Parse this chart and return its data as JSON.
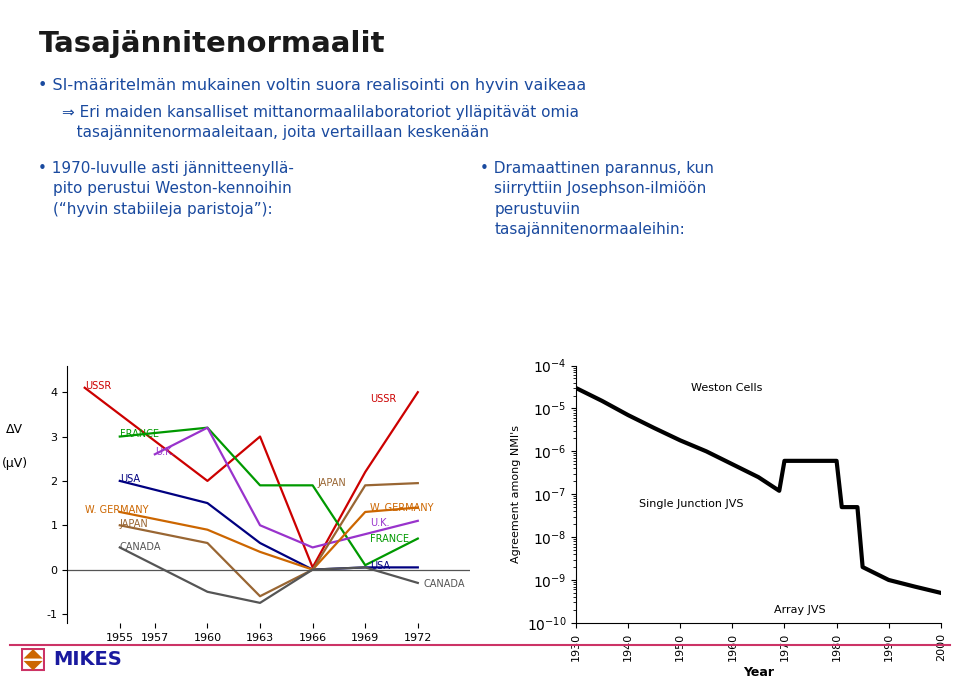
{
  "title": "Tasajännitenormaalit",
  "bullet1": "SI-määritelmän mukainen voltin suora realisointi on hyvin vaikeaa",
  "bullet1_sub": "⇒ Eri maiden kansalliset mittanormaalilaboratoriot ylläpitävät omia",
  "bullet1_sub2": "   tasajännitenormaaleitaan, joita vertaillaan keskenään",
  "bullet2_left_line1": "1970-luvulle asti jännitteenyllä-",
  "bullet2_left_line2": "pito perustui Weston-kennoihin",
  "bullet2_left_line3": "(“hyvin stabiileja paristoja”):",
  "bullet2_right_line1": "Dramaattinen parannus, kun",
  "bullet2_right_line2": "siirryttiin Josephson-ilmiöön",
  "bullet2_right_line3": "perustuviin",
  "bullet2_right_line4": "tasajännitenormaaleihin:",
  "background": "#ffffff",
  "title_color": "#1a1a1a",
  "bullet_color": "#1a4a9f",
  "footer_line_color": "#cc3366",
  "left_chart": {
    "years": [
      1953,
      1955,
      1957,
      1960,
      1963,
      1966,
      1969,
      1972
    ],
    "series": {
      "USSR": {
        "color": "#cc0000",
        "values": [
          4.1,
          null,
          null,
          2.0,
          3.0,
          0.05,
          2.2,
          4.0
        ]
      },
      "FRANCE": {
        "color": "#009900",
        "values": [
          null,
          3.0,
          null,
          3.2,
          1.9,
          1.9,
          0.1,
          0.7
        ]
      },
      "UK": {
        "color": "#9933cc",
        "values": [
          null,
          null,
          2.6,
          3.2,
          1.0,
          0.5,
          0.8,
          1.1
        ]
      },
      "USA": {
        "color": "#000080",
        "values": [
          null,
          2.0,
          null,
          1.5,
          0.6,
          0.0,
          0.05,
          0.05
        ]
      },
      "W_GERMANY": {
        "color": "#cc6600",
        "values": [
          null,
          1.3,
          null,
          0.9,
          0.4,
          0.0,
          1.3,
          1.4
        ]
      },
      "JAPAN": {
        "color": "#996633",
        "values": [
          null,
          1.0,
          null,
          0.6,
          -0.6,
          0.0,
          1.9,
          1.95
        ]
      },
      "CANADA": {
        "color": "#555555",
        "values": [
          null,
          0.5,
          null,
          -0.5,
          -0.75,
          0.0,
          0.05,
          -0.3
        ]
      }
    },
    "label_start": {
      "USSR": [
        1953,
        4.15,
        "USSR",
        "#cc0000",
        "left"
      ],
      "FRANCE": [
        1955,
        3.05,
        "FRANCE",
        "#009900",
        "left"
      ],
      "UK": [
        1957,
        2.65,
        "U.K.",
        "#9933cc",
        "left"
      ],
      "USA": [
        1955,
        2.05,
        "USA",
        "#000080",
        "left"
      ],
      "W_GERMANY": [
        1953,
        1.35,
        "W. GERMANY",
        "#cc6600",
        "left"
      ],
      "JAPAN": [
        1955,
        1.02,
        "JAPAN",
        "#996633",
        "left"
      ],
      "CANADA": [
        1955,
        0.52,
        "CANADA",
        "#555555",
        "left"
      ]
    },
    "label_end": {
      "USSR": [
        1969.3,
        3.85,
        "USSR",
        "#cc0000",
        "left"
      ],
      "JAPAN": [
        1966.3,
        1.95,
        "JAPAN",
        "#996633",
        "left"
      ],
      "W_GERMANY": [
        1969.3,
        1.38,
        "W. GERMANY",
        "#cc6600",
        "left"
      ],
      "UK": [
        1969.3,
        1.05,
        "U.K.",
        "#9933cc",
        "left"
      ],
      "FRANCE": [
        1969.3,
        0.68,
        "FRANCE",
        "#009900",
        "left"
      ],
      "USA": [
        1969.3,
        0.08,
        "USA",
        "#000080",
        "left"
      ],
      "CANADA": [
        1972.3,
        -0.32,
        "CANADA",
        "#555555",
        "left"
      ]
    },
    "xlabel_ticks": [
      1955,
      1957,
      1960,
      1963,
      1966,
      1969,
      1972
    ],
    "ylim": [
      -1.2,
      4.6
    ],
    "yticks": [
      -1,
      0,
      1,
      2,
      3,
      4
    ],
    "ylabel1": "ΔV",
    "ylabel2": "(μV)"
  },
  "right_chart": {
    "x": [
      1930,
      1935,
      1940,
      1945,
      1950,
      1955,
      1960,
      1965,
      1969,
      1969,
      1970,
      1975,
      1980,
      1980,
      1981,
      1984,
      1985,
      1990,
      1995,
      2000
    ],
    "y": [
      3e-05,
      1.5e-05,
      7e-06,
      3.5e-06,
      1.8e-06,
      1e-06,
      5e-07,
      2.5e-07,
      1.2e-07,
      1.2e-07,
      6e-07,
      6e-07,
      6e-07,
      6e-07,
      5e-08,
      5e-08,
      2e-09,
      1e-09,
      7e-10,
      5e-10
    ],
    "ylim": [
      1e-10,
      0.0001
    ],
    "xlim": [
      1930,
      2000
    ],
    "ylabel": "Agreement among NMI's",
    "xlabel": "Year",
    "ann_weston": [
      1952,
      3e-05,
      "Weston Cells"
    ],
    "ann_single": [
      1942,
      6e-08,
      "Single Junction JVS"
    ],
    "ann_array": [
      1968,
      2e-10,
      "Array JVS"
    ]
  }
}
